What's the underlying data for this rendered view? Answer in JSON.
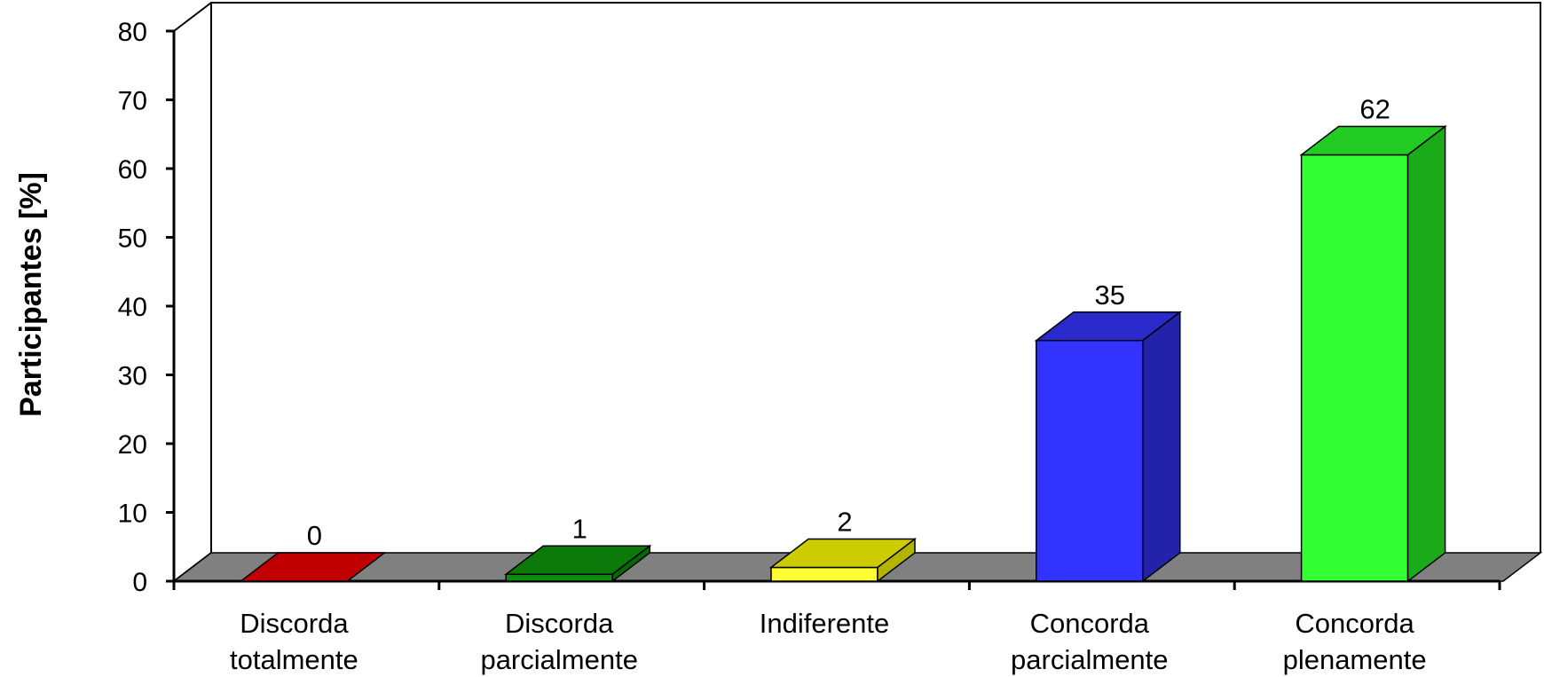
{
  "chart_data": {
    "type": "bar",
    "ylabel": "Participantes [%]",
    "ylim": [
      0,
      80
    ],
    "yticks": [
      0,
      10,
      20,
      30,
      40,
      50,
      60,
      70,
      80
    ],
    "categories": [
      [
        "Discorda",
        "totalmente"
      ],
      [
        "Discorda",
        "parcialmente"
      ],
      [
        "Indiferente"
      ],
      [
        "Concorda",
        "parcialmente"
      ],
      [
        "Concorda",
        "plenamente"
      ]
    ],
    "values": [
      0,
      1,
      2,
      35,
      62
    ],
    "data_labels": [
      "0",
      "1",
      "2",
      "35",
      "62"
    ],
    "colors": [
      {
        "front": "#e00000",
        "top": "#c00000",
        "side": "#a00000"
      },
      {
        "front": "#0e8a0e",
        "top": "#0b7a0b",
        "side": "#086808"
      },
      {
        "front": "#ffff33",
        "top": "#cccc00",
        "side": "#b3b300"
      },
      {
        "front": "#3333ff",
        "top": "#2a2acc",
        "side": "#2222aa"
      },
      {
        "front": "#33ff33",
        "top": "#22cc22",
        "side": "#1aaa1a"
      }
    ],
    "grid": false,
    "style": "3d"
  }
}
